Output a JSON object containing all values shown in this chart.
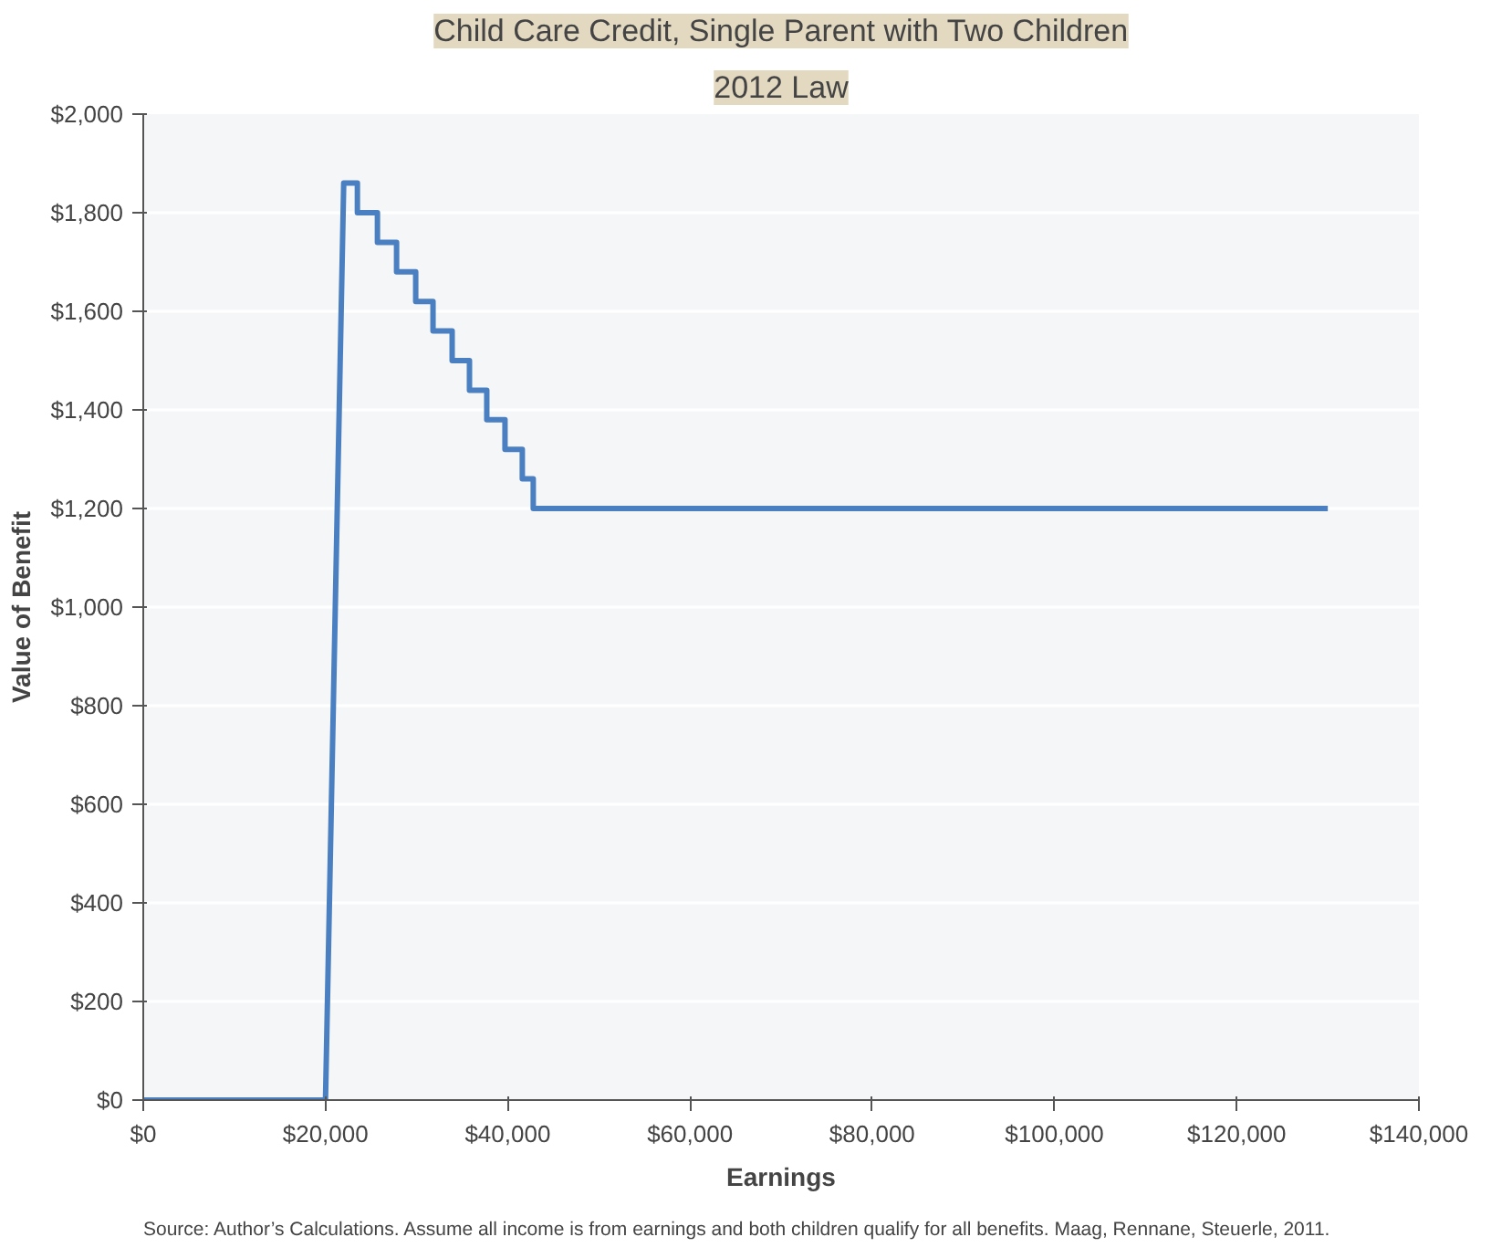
{
  "chart_data": {
    "type": "line",
    "title": "Child Care Credit, Single Parent with Two Children",
    "subtitle": "2012 Law",
    "xlabel": "Earnings",
    "ylabel": "Value of Benefit",
    "x": [
      0,
      20000,
      22000,
      23500,
      23500,
      25700,
      25700,
      27800,
      27800,
      29900,
      29900,
      31800,
      31800,
      33900,
      33900,
      35800,
      35800,
      37700,
      37700,
      39700,
      39700,
      41600,
      41600,
      42800,
      42800,
      130000
    ],
    "series": [
      {
        "color": "#4a7fc1",
        "values": [
          0,
          0,
          1860,
          1860,
          1800,
          1800,
          1740,
          1740,
          1680,
          1680,
          1620,
          1620,
          1560,
          1560,
          1500,
          1500,
          1440,
          1440,
          1380,
          1380,
          1320,
          1320,
          1260,
          1260,
          1200,
          1200
        ]
      }
    ],
    "xlim": [
      0,
      140000
    ],
    "xticks": [
      {
        "value": 0,
        "label": "$0"
      },
      {
        "value": 20000,
        "label": "$20,000"
      },
      {
        "value": 40000,
        "label": "$40,000"
      },
      {
        "value": 60000,
        "label": "$60,000"
      },
      {
        "value": 80000,
        "label": "$80,000"
      },
      {
        "value": 100000,
        "label": "$100,000"
      },
      {
        "value": 120000,
        "label": "$120,000"
      },
      {
        "value": 140000,
        "label": "$140,000"
      }
    ],
    "ylim": [
      0,
      2000
    ],
    "yticks": [
      {
        "value": 0,
        "label": "$0"
      },
      {
        "value": 200,
        "label": "$200"
      },
      {
        "value": 400,
        "label": "$400"
      },
      {
        "value": 600,
        "label": "$600"
      },
      {
        "value": 800,
        "label": "$800"
      },
      {
        "value": 1000,
        "label": "$1,000"
      },
      {
        "value": 1200,
        "label": "$1,200"
      },
      {
        "value": 1400,
        "label": "$1,400"
      },
      {
        "value": 1600,
        "label": "$1,600"
      },
      {
        "value": 1800,
        "label": "$1,800"
      },
      {
        "value": 2000,
        "label": "$2,000"
      }
    ],
    "grid": "y",
    "line_style": "solid",
    "marker": "none",
    "annotations": [
      "Source: Author’s Calculations. Assume all income is from earnings and both children qualify for all benefits. Maag, Rennane, Steuerle, 2011."
    ]
  }
}
